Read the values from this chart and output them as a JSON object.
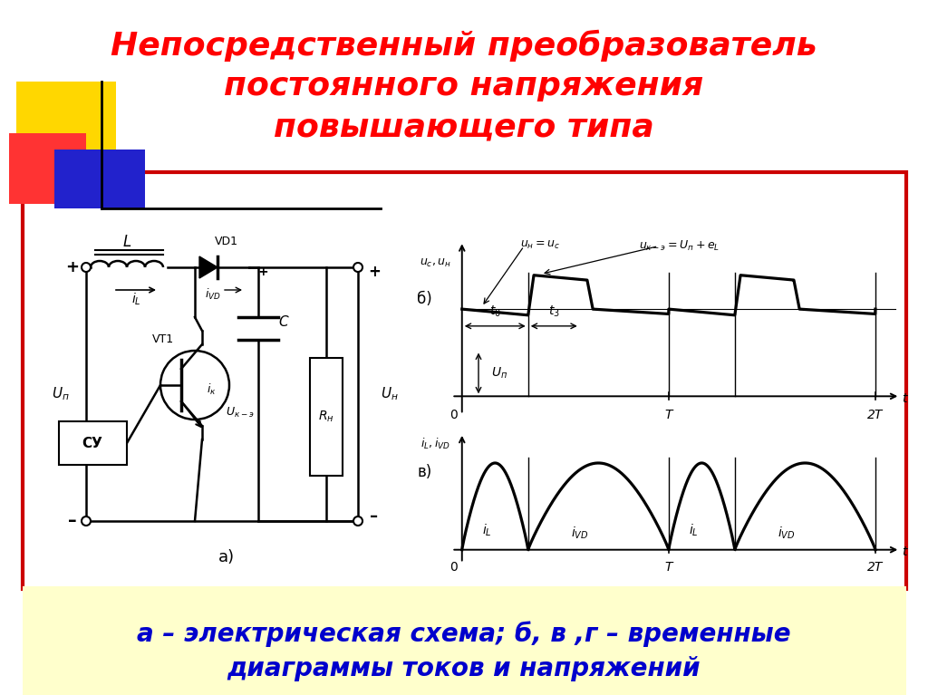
{
  "title_line1": "Непосредственный преобразователь",
  "title_line2": "постоянного напряжения",
  "title_line3": "повышающего типа",
  "title_color": "#FF0000",
  "title_fontsize": 26,
  "bg_color": "#FFFFFF",
  "box_color": "#CC0000",
  "footer_text_line1": "а – электрическая схема; б, в ,г – временные",
  "footer_text_line2": "диаграммы токов и напряжений",
  "footer_bg": "#FFFFCC",
  "footer_color": "#0000CC",
  "footer_fontsize": 20
}
